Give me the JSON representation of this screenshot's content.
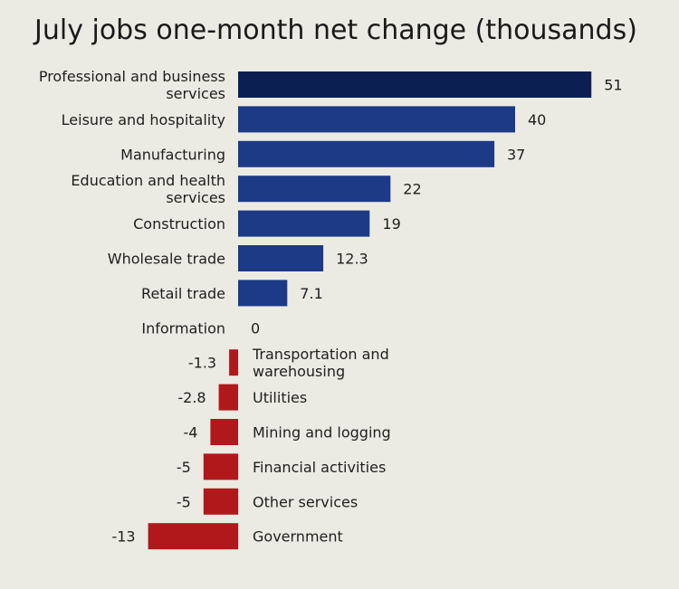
{
  "chart_data": {
    "type": "bar",
    "orientation": "horizontal",
    "title": "July jobs one-month net change (thousands)",
    "xlabel": "",
    "ylabel": "",
    "categories": [
      "Professional and business services",
      "Leisure and hospitality",
      "Manufacturing",
      "Education and health services",
      "Construction",
      "Wholesale trade",
      "Retail trade",
      "Information",
      "Transportation and warehousing",
      "Utilities",
      "Mining and logging",
      "Financial activities",
      "Other services",
      "Government"
    ],
    "values": [
      51,
      40,
      37,
      22,
      19,
      12.3,
      7.1,
      0,
      -1.3,
      -2.8,
      -4,
      -5,
      -5,
      -13
    ],
    "value_labels": [
      "51",
      "40",
      "37",
      "22",
      "19",
      "12.3",
      "7.1",
      "0",
      "-1.3",
      "-2.8",
      "-4",
      "-5",
      "-5",
      "-13"
    ],
    "colors": {
      "positive": "#1c3a86",
      "positive_dark": "#0c1f52",
      "negative": "#b0181c"
    },
    "grid": false,
    "legend": "none"
  }
}
